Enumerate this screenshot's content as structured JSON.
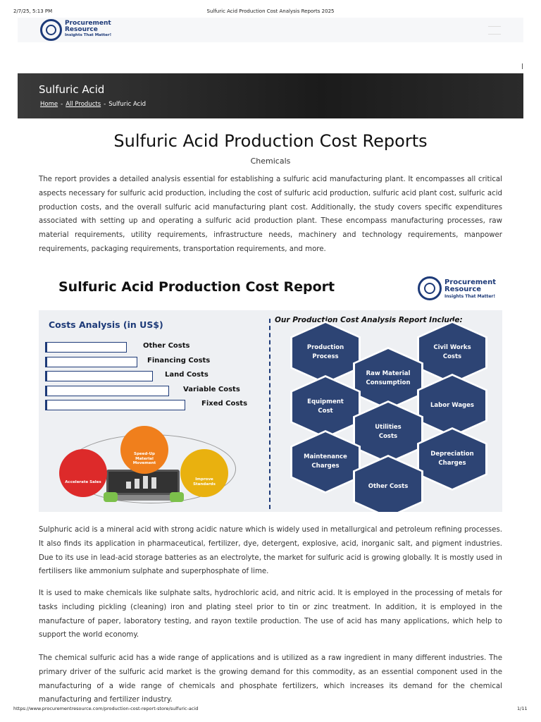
{
  "print_header": {
    "date": "2/7/25, 5:13 PM",
    "title": "Sulfuric Acid Production Cost Analysis Reports 2025"
  },
  "logo": {
    "name_line1": "Procurement",
    "name_line2": "Resource",
    "tagline": "Insights That Matter!"
  },
  "banner": {
    "title": "Sulfuric Acid",
    "breadcrumbs": [
      "Home",
      "All Products",
      "Sulfuric Acid"
    ],
    "breadcrumb_separator": "-"
  },
  "heading": "Sulfuric Acid Production Cost Reports",
  "subheading": "Chemicals",
  "intro": "The report provides a detailed analysis essential for establishing a sulfuric acid manufacturing plant. It encompasses all critical aspects necessary for sulfuric acid production, including the cost of sulfuric acid production, sulfuric acid plant cost, sulfuric acid production costs, and the overall sulfuric acid manufacturing plant cost. Additionally, the study covers specific expenditures associated with setting up and operating a sulfuric acid production plant. These encompass manufacturing processes, raw material requirements, utility requirements, infrastructure needs, machinery and technology requirements, manpower requirements, packaging requirements, transportation requirements, and more.",
  "infographic": {
    "title": "Sulfuric Acid Production Cost Report",
    "costs_title": "Costs Analysis (in US$)",
    "cost_items": [
      "Other Costs",
      "Financing Costs",
      "Land Costs",
      "Variable Costs",
      "Fixed Costs"
    ],
    "benefits": [
      "Speed-Up Material Movement",
      "Accelerate Sales",
      "Improve Standards"
    ],
    "includes_title": "Our Production Cost Analysis Report Include:",
    "includes": [
      "Production Process",
      "Civil Works Costs",
      "Raw Material Consumption",
      "Equipment Cost",
      "Labor Wages",
      "Utilities Costs",
      "Maintenance Charges",
      "Depreciation Charges",
      "Other Costs"
    ]
  },
  "paragraphs": [
    "Sulphuric acid is a mineral acid with strong acidic nature which is widely used in metallurgical and petroleum refining processes. It also finds its application in pharmaceutical, fertilizer, dye, detergent, explosive, acid, inorganic salt, and pigment industries. Due to its use in lead-acid storage batteries as an electrolyte, the market for sulfuric acid is growing globally. It is mostly used in fertilisers like ammonium sulphate and superphosphate of lime.",
    "It is used to make chemicals like sulphate salts, hydrochloric acid, and nitric acid. It is employed in the processing of metals for tasks including pickling (cleaning) iron and plating steel prior to tin or zinc treatment. In addition, it is employed in the manufacture of paper, laboratory testing, and rayon textile production. The use of acid has many applications, which help to support the world economy.",
    "The chemical sulfuric acid has a wide range of applications and is utilized as a raw ingredient in many different industries. The primary driver of the sulfuric acid market is the growing demand for this commodity, as an essential component used in the manufacturing of a wide range of chemicals and phosphate fertilizers, which increases its demand for the chemical manufacturing and fertilizer industry."
  ],
  "print_footer": {
    "url": "https://www.procurementresource.com/production-cost-report-store/sulfuric-acid",
    "page": "1/11"
  }
}
